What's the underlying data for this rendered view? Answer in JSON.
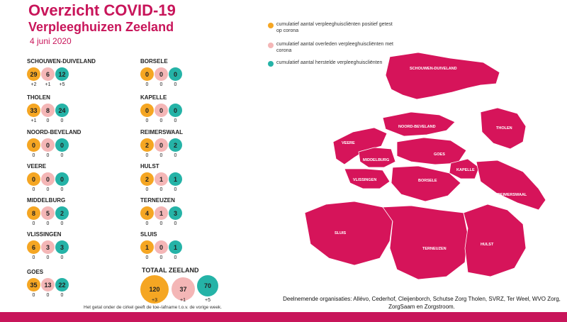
{
  "title": "Overzicht COVID-19",
  "subtitle": "Verpleeghuizen Zeeland",
  "date": "4 juni 2020",
  "colors": {
    "infected": "#f5a623",
    "deceased": "#f4b6b6",
    "recovered": "#25b3a7",
    "brand": "#c8155a"
  },
  "regions": [
    {
      "name": "SCHOUWEN-DUIVELAND",
      "infected": "29",
      "deceased": "6",
      "recovered": "12",
      "d_infected": "+2",
      "d_deceased": "+1",
      "d_recovered": "+5"
    },
    {
      "name": "THOLEN",
      "infected": "33",
      "deceased": "8",
      "recovered": "24",
      "d_infected": "+1",
      "d_deceased": "0",
      "d_recovered": "0"
    },
    {
      "name": "NOORD-BEVELAND",
      "infected": "0",
      "deceased": "0",
      "recovered": "0",
      "d_infected": "0",
      "d_deceased": "0",
      "d_recovered": "0"
    },
    {
      "name": "VEERE",
      "infected": "0",
      "deceased": "0",
      "recovered": "0",
      "d_infected": "0",
      "d_deceased": "0",
      "d_recovered": "0"
    },
    {
      "name": "MIDDELBURG",
      "infected": "8",
      "deceased": "5",
      "recovered": "2",
      "d_infected": "0",
      "d_deceased": "0",
      "d_recovered": "0"
    },
    {
      "name": "VLISSINGEN",
      "infected": "6",
      "deceased": "3",
      "recovered": "3",
      "d_infected": "0",
      "d_deceased": "0",
      "d_recovered": "0"
    },
    {
      "name": "GOES",
      "infected": "35",
      "deceased": "13",
      "recovered": "22",
      "d_infected": "0",
      "d_deceased": "0",
      "d_recovered": "0"
    },
    {
      "name": "BORSELE",
      "infected": "0",
      "deceased": "0",
      "recovered": "0",
      "d_infected": "0",
      "d_deceased": "0",
      "d_recovered": "0"
    },
    {
      "name": "KAPELLE",
      "infected": "0",
      "deceased": "0",
      "recovered": "0",
      "d_infected": "0",
      "d_deceased": "0",
      "d_recovered": "0"
    },
    {
      "name": "REIMERSWAAL",
      "infected": "2",
      "deceased": "0",
      "recovered": "2",
      "d_infected": "0",
      "d_deceased": "0",
      "d_recovered": "0"
    },
    {
      "name": "HULST",
      "infected": "2",
      "deceased": "1",
      "recovered": "1",
      "d_infected": "0",
      "d_deceased": "0",
      "d_recovered": "0"
    },
    {
      "name": "TERNEUZEN",
      "infected": "4",
      "deceased": "1",
      "recovered": "3",
      "d_infected": "0",
      "d_deceased": "0",
      "d_recovered": "0"
    },
    {
      "name": "SLUIS",
      "infected": "1",
      "deceased": "0",
      "recovered": "1",
      "d_infected": "0",
      "d_deceased": "0",
      "d_recovered": "0"
    }
  ],
  "total": {
    "label": "TOTAAL ZEELAND",
    "infected": "120",
    "deceased": "37",
    "recovered": "70",
    "d_infected": "+3",
    "d_deceased": "+1",
    "d_recovered": "+5"
  },
  "footnote": "Het getal onder de cirkel geeft de toe-/afname t.o.v. de vorige week.",
  "legend": [
    {
      "text": "cumulatief aantal verpleeghuiscliënten positief getest op corona",
      "color": "#f5a623"
    },
    {
      "text": "cumulatief aantal overleden verpleeghuiscliënten met corona",
      "color": "#f4b6b6"
    },
    {
      "text": "cumulatief aantal herstelde verpleeghuiscliënten",
      "color": "#25b3a7"
    }
  ],
  "organisations": "Deelnemende organisaties: Allévo, Cederhof, Cleijenborch, Schutse Zorg Tholen, SVRZ, Ter Weel, WVO Zorg, ZorgSaam en Zorgstroom.",
  "map_labels": {
    "schouwen": "SCHOUWEN-DUIVELAND",
    "noordbeveland": "NOORD-BEVELAND",
    "tholen": "THOLEN",
    "veere": "VEERE",
    "goes": "GOES",
    "middelburg": "MIDDELBURG",
    "kapelle": "KAPELLE",
    "vlissingen": "VLISSINGEN",
    "borsele": "BORSELE",
    "reimerswaal": "REIMERSWAAL",
    "sluis": "SLUIS",
    "terneuzen": "TERNEUZEN",
    "hulst": "HULST"
  }
}
